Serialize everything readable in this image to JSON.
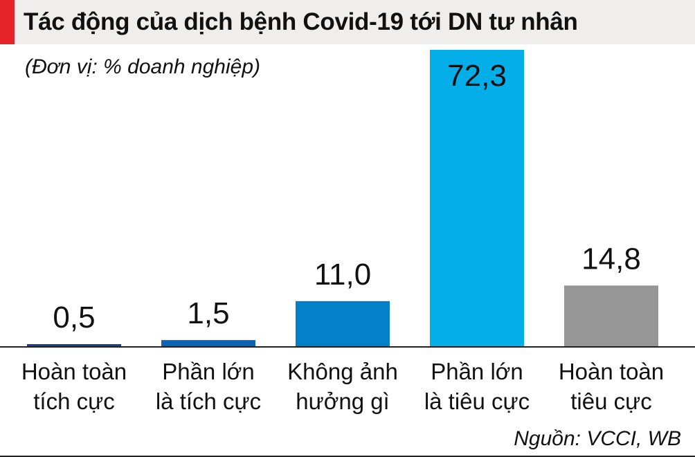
{
  "title": "Tác động của dịch bệnh Covid-19 tới DN tư nhân",
  "unit_note": "(Đơn vị: % doanh nghiệp)",
  "source": "Nguồn: VCCI, WB",
  "colors": {
    "accent": "#e5242a",
    "title_bg": "#efeeed",
    "baseline": "#222222"
  },
  "chart_data": {
    "type": "bar",
    "categories": [
      [
        "Hoàn toàn",
        "tích cực"
      ],
      [
        "Phần lớn",
        "là tích cực"
      ],
      [
        "Không ảnh",
        "hưởng gì"
      ],
      [
        "Phần lớn",
        "là tiêu cực"
      ],
      [
        "Hoàn toàn",
        "tiêu cực"
      ]
    ],
    "values": [
      0.5,
      1.5,
      11.0,
      72.3,
      14.8
    ],
    "value_labels": [
      "0,5",
      "1,5",
      "11,0",
      "72,3",
      "14,8"
    ],
    "bar_colors": [
      "#1c3f8f",
      "#0a63b8",
      "#0380c8",
      "#03aee9",
      "#969696"
    ],
    "ylim": [
      0,
      72.3
    ],
    "grid": false,
    "legend": "none"
  }
}
